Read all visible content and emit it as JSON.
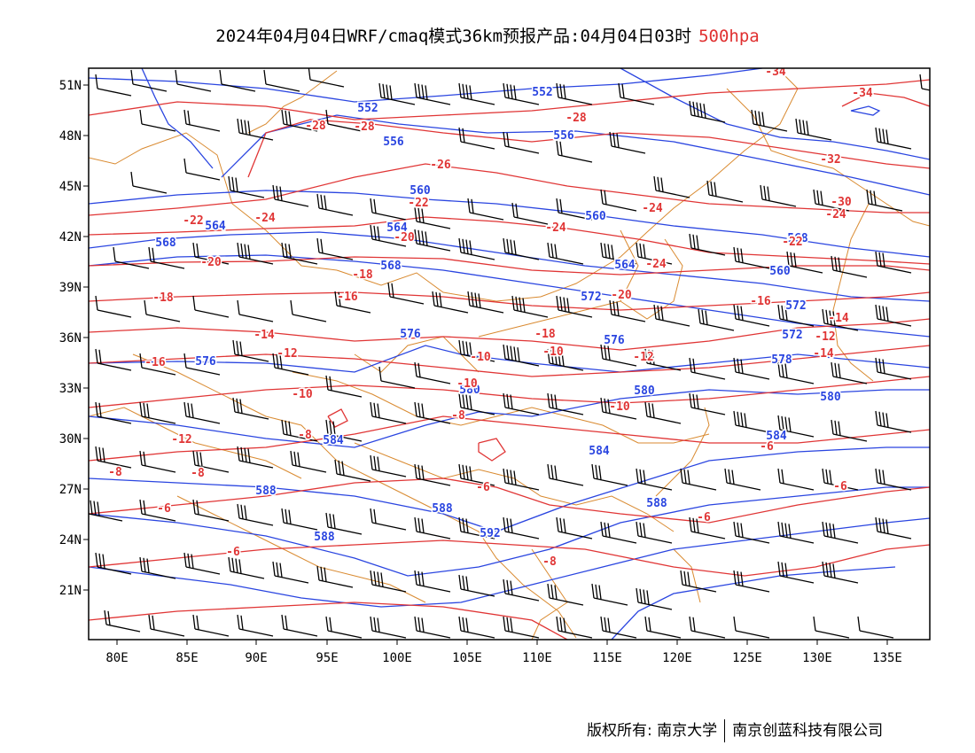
{
  "title": {
    "main": "2024年04月04日WRF/cmaq模式36km预报产品:04月04日03时",
    "level": "500hpa"
  },
  "colors": {
    "height_contour": "#2a45e0",
    "temperature_contour": "#e03535",
    "borders": "#d98a30",
    "wind_barb": "#000000"
  },
  "map": {
    "lon_range": [
      78,
      138
    ],
    "lat_range": [
      18,
      52
    ],
    "lat_labels": [
      "51N",
      "48N",
      "45N",
      "42N",
      "39N",
      "36N",
      "33N",
      "30N",
      "27N",
      "24N",
      "21N"
    ],
    "lon_labels": [
      "80E",
      "85E",
      "90E",
      "95E",
      "100E",
      "105E",
      "110E",
      "115E",
      "120E",
      "125E",
      "130E",
      "135E"
    ]
  },
  "contours": {
    "height_labels": [
      "552",
      "552",
      "556",
      "556",
      "560",
      "560",
      "564",
      "564",
      "568",
      "568",
      "560",
      "564",
      "568",
      "572",
      "572",
      "572",
      "576",
      "576",
      "576",
      "578",
      "580",
      "580",
      "580",
      "584",
      "584",
      "584",
      "588",
      "588",
      "588",
      "588",
      "592"
    ],
    "temperature_labels": [
      "-34",
      "-34",
      "-28",
      "-28",
      "-28",
      "-32",
      "-26",
      "-24",
      "-24",
      "-22",
      "-24",
      "-24",
      "-22",
      "-20",
      "-30",
      "-22",
      "-20",
      "-24",
      "-18",
      "-16",
      "-20",
      "-18",
      "-16",
      "-18",
      "-14",
      "-14",
      "-12",
      "-16",
      "-12",
      "-12",
      "-10",
      "-10",
      "-14",
      "-12",
      "-10",
      "-10",
      "-10",
      "-8",
      "-8",
      "-6",
      "-8",
      "-8",
      "-6",
      "-6",
      "-6",
      "-6",
      "-6",
      "-8"
    ]
  },
  "footer": {
    "copyright": "版权所有: 南京大学",
    "company": "南京创蓝科技有限公司"
  }
}
